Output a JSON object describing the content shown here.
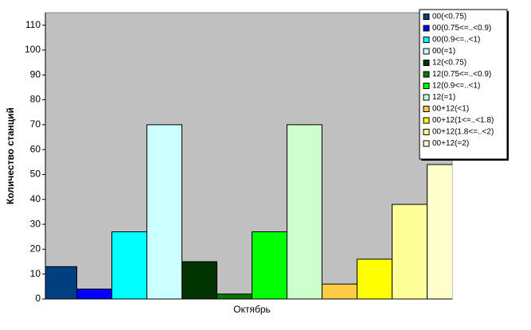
{
  "chart_data": {
    "type": "bar",
    "y_label": "Количество станций",
    "categories": [
      "Октябрь"
    ],
    "series": [
      {
        "name": "00(<0.75)",
        "color": "#004080",
        "values": [
          13
        ]
      },
      {
        "name": "00(0.75<=..<0.9)",
        "color": "#0000ff",
        "values": [
          4
        ]
      },
      {
        "name": "00(0.9<=..<1)",
        "color": "#00ffff",
        "values": [
          27
        ]
      },
      {
        "name": "00(=1)",
        "color": "#ccffff",
        "values": [
          70
        ]
      },
      {
        "name": "12(<0.75)",
        "color": "#003300",
        "values": [
          15
        ]
      },
      {
        "name": "12(0.75<=..<0.9)",
        "color": "#007a00",
        "values": [
          2
        ]
      },
      {
        "name": "12(0.9<=..<1)",
        "color": "#00ff00",
        "values": [
          27
        ]
      },
      {
        "name": "12(=1)",
        "color": "#ccffcc",
        "values": [
          70
        ]
      },
      {
        "name": "00+12(<1)",
        "color": "#ffcc44",
        "values": [
          6
        ]
      },
      {
        "name": "00+12(1<=..<1.8)",
        "color": "#ffff00",
        "values": [
          16
        ]
      },
      {
        "name": "00+12(1.8<=..<2)",
        "color": "#ffff99",
        "values": [
          38
        ]
      },
      {
        "name": "00+12(=2)",
        "color": "#ffffcc",
        "values": [
          54
        ]
      }
    ],
    "ylim": [
      0,
      115
    ],
    "yticks": [
      0,
      10,
      20,
      30,
      40,
      50,
      60,
      70,
      80,
      90,
      100,
      110
    ],
    "grid": false,
    "legend": "top-right"
  }
}
